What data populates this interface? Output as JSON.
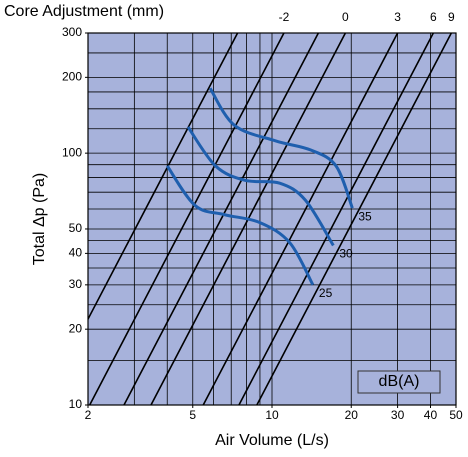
{
  "chart_data": {
    "type": "line",
    "log_x": true,
    "log_y": true,
    "title": "Core Adjustment (mm)",
    "x_label": "Air Volume (L/s)",
    "y_label": "Total Δp (Pa)",
    "legend_title": "dB(A)",
    "xlim": [
      2,
      50
    ],
    "ylim": [
      10,
      300
    ],
    "xticks": [
      2,
      5,
      10,
      20,
      30,
      40,
      50
    ],
    "yticks": [
      10,
      20,
      30,
      40,
      50,
      100,
      200,
      300
    ],
    "xgrid": [
      2,
      3,
      4,
      5,
      6,
      7,
      8,
      9,
      10,
      20,
      30,
      40,
      50
    ],
    "ygrid": [
      10,
      15,
      20,
      25,
      30,
      35,
      40,
      45,
      50,
      60,
      70,
      80,
      90,
      100,
      125,
      150,
      175,
      200,
      250,
      300
    ],
    "background": "#a7b2db",
    "line_color": "#000000",
    "core_lines": [
      {
        "x": [
          1.35,
          7.4
        ],
        "y": [
          10,
          300
        ]
      },
      {
        "label": -2,
        "x": [
          2.03,
          11.1
        ],
        "y": [
          10,
          300
        ]
      },
      {
        "x": [
          2.74,
          15
        ],
        "y": [
          10,
          300
        ]
      },
      {
        "label": 0,
        "x": [
          3.47,
          19
        ],
        "y": [
          10,
          300
        ]
      },
      {
        "label": 3,
        "x": [
          5.48,
          30
        ],
        "y": [
          10,
          300
        ]
      },
      {
        "label": 6,
        "x": [
          7.49,
          41
        ],
        "y": [
          10,
          300
        ]
      },
      {
        "label": 9,
        "x": [
          8.76,
          48
        ],
        "y": [
          10,
          300
        ]
      }
    ],
    "series": [
      {
        "name": "35",
        "color": "#1f5fae",
        "x": [
          5.82,
          7.2,
          10.3,
          14,
          17.5,
          20.2
        ],
        "values": [
          181,
          129,
          112,
          103,
          89,
          60.5
        ]
      },
      {
        "name": "30",
        "color": "#1f5fae",
        "x": [
          4.8,
          6.1,
          7.9,
          10.7,
          13.4,
          17.1
        ],
        "values": [
          127,
          89,
          78,
          76,
          65,
          43
        ]
      },
      {
        "name": "25",
        "color": "#1f5fae",
        "x": [
          4.0,
          5.1,
          6.6,
          9.0,
          11.7,
          14.3
        ],
        "values": [
          89,
          62,
          57,
          53,
          44,
          30
        ]
      }
    ]
  }
}
